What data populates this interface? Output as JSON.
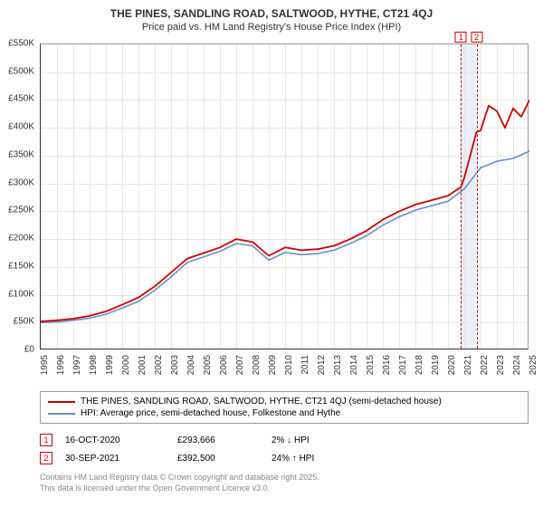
{
  "title": "THE PINES, SANDLING ROAD, SALTWOOD, HYTHE, CT21 4QJ",
  "subtitle": "Price paid vs. HM Land Registry's House Price Index (HPI)",
  "chart": {
    "type": "line",
    "background_color": "#ffffff",
    "grid_color": "#e6e6e6",
    "axis_color": "#333333",
    "ylim": [
      0,
      550000
    ],
    "ytick_step": 50000,
    "y_labels": [
      "£0",
      "£50K",
      "£100K",
      "£150K",
      "£200K",
      "£250K",
      "£300K",
      "£350K",
      "£400K",
      "£450K",
      "£500K",
      "£550K"
    ],
    "x_years": [
      1995,
      1996,
      1997,
      1998,
      1999,
      2000,
      2001,
      2002,
      2003,
      2004,
      2005,
      2006,
      2007,
      2008,
      2009,
      2010,
      2011,
      2012,
      2013,
      2014,
      2015,
      2016,
      2017,
      2018,
      2019,
      2020,
      2021,
      2022,
      2023,
      2024,
      2025
    ],
    "highlight_band": {
      "x_start_year": 2020.8,
      "x_end_year": 2021.75,
      "fill": "#dce6f2"
    },
    "series": [
      {
        "name": "price_paid",
        "label": "THE PINES, SANDLING ROAD, SALTWOOD, HYTHE, CT21 4QJ (semi-detached house)",
        "color": "#cc0000",
        "line_width": 1.8,
        "data": [
          [
            1995,
            52000
          ],
          [
            1996,
            54000
          ],
          [
            1997,
            57000
          ],
          [
            1998,
            62000
          ],
          [
            1999,
            70000
          ],
          [
            2000,
            82000
          ],
          [
            2001,
            95000
          ],
          [
            2002,
            115000
          ],
          [
            2003,
            140000
          ],
          [
            2004,
            165000
          ],
          [
            2005,
            175000
          ],
          [
            2006,
            185000
          ],
          [
            2007,
            200000
          ],
          [
            2008,
            195000
          ],
          [
            2009,
            170000
          ],
          [
            2010,
            185000
          ],
          [
            2011,
            180000
          ],
          [
            2012,
            182000
          ],
          [
            2013,
            188000
          ],
          [
            2014,
            200000
          ],
          [
            2015,
            215000
          ],
          [
            2016,
            235000
          ],
          [
            2017,
            250000
          ],
          [
            2018,
            262000
          ],
          [
            2019,
            270000
          ],
          [
            2020,
            278000
          ],
          [
            2020.8,
            293666
          ],
          [
            2021,
            310000
          ],
          [
            2021.75,
            392500
          ],
          [
            2022,
            395000
          ],
          [
            2022.5,
            440000
          ],
          [
            2023,
            430000
          ],
          [
            2023.5,
            400000
          ],
          [
            2024,
            435000
          ],
          [
            2024.5,
            420000
          ],
          [
            2025,
            450000
          ]
        ]
      },
      {
        "name": "hpi",
        "label": "HPI: Average price, semi-detached house, Folkestone and Hythe",
        "color": "#6a8fc4",
        "line_width": 1.6,
        "data": [
          [
            1995,
            50000
          ],
          [
            1996,
            51000
          ],
          [
            1997,
            54000
          ],
          [
            1998,
            58000
          ],
          [
            1999,
            65000
          ],
          [
            2000,
            76000
          ],
          [
            2001,
            88000
          ],
          [
            2002,
            108000
          ],
          [
            2003,
            132000
          ],
          [
            2004,
            158000
          ],
          [
            2005,
            168000
          ],
          [
            2006,
            178000
          ],
          [
            2007,
            192000
          ],
          [
            2008,
            188000
          ],
          [
            2009,
            162000
          ],
          [
            2010,
            176000
          ],
          [
            2011,
            172000
          ],
          [
            2012,
            174000
          ],
          [
            2013,
            180000
          ],
          [
            2014,
            192000
          ],
          [
            2015,
            206000
          ],
          [
            2016,
            225000
          ],
          [
            2017,
            240000
          ],
          [
            2018,
            252000
          ],
          [
            2019,
            260000
          ],
          [
            2020,
            268000
          ],
          [
            2021,
            290000
          ],
          [
            2022,
            328000
          ],
          [
            2023,
            340000
          ],
          [
            2024,
            345000
          ],
          [
            2025,
            358000
          ]
        ]
      }
    ],
    "plot_markers": [
      {
        "num": "1",
        "year": 2020.8,
        "color": "#cc0000"
      },
      {
        "num": "2",
        "year": 2021.75,
        "color": "#cc0000"
      }
    ]
  },
  "legend": [
    {
      "color": "#cc0000",
      "text": "THE PINES, SANDLING ROAD, SALTWOOD, HYTHE, CT21 4QJ (semi-detached house)"
    },
    {
      "color": "#6a8fc4",
      "text": "HPI: Average price, semi-detached house, Folkestone and Hythe"
    }
  ],
  "markers": [
    {
      "num": "1",
      "color": "#cc0000",
      "date": "16-OCT-2020",
      "price": "£293,666",
      "change": "2% ↓ HPI"
    },
    {
      "num": "2",
      "color": "#cc0000",
      "date": "30-SEP-2021",
      "price": "£392,500",
      "change": "24% ↑ HPI"
    }
  ],
  "footer_line1": "Contains HM Land Registry data © Crown copyright and database right 2025.",
  "footer_line2": "This data is licensed under the Open Government Licence v3.0."
}
